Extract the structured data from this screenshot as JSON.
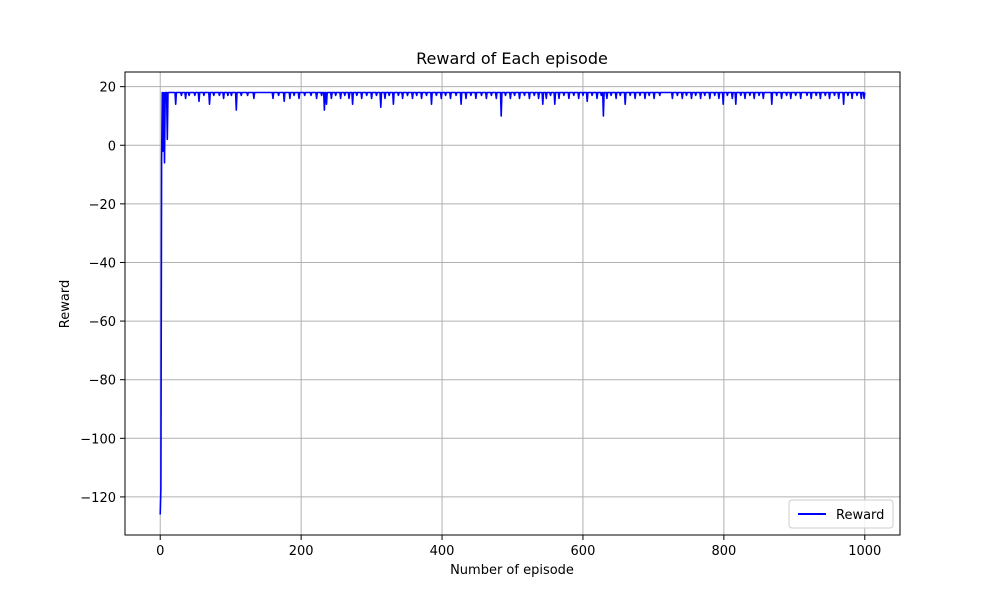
{
  "chart_data": {
    "type": "line",
    "title": "Reward of Each episode",
    "xlabel": "Number of episode",
    "ylabel": "Reward",
    "xlim": [
      -50,
      1050
    ],
    "ylim": [
      -133,
      25
    ],
    "xticks": [
      0,
      200,
      400,
      600,
      800,
      1000
    ],
    "xtick_labels": [
      "0",
      "200",
      "400",
      "600",
      "800",
      "1000"
    ],
    "yticks": [
      -120,
      -100,
      -80,
      -60,
      -40,
      -20,
      0,
      20
    ],
    "ytick_labels": [
      "−120",
      "−100",
      "−80",
      "−60",
      "−40",
      "−20",
      "0",
      "20"
    ],
    "grid": true,
    "legend": {
      "position": "lower-right",
      "entries": [
        "Reward"
      ]
    },
    "series": [
      {
        "name": "Reward",
        "color": "#0000ff",
        "baseline": 18,
        "early_points": [
          [
            0,
            -126
          ],
          [
            1,
            -117
          ],
          [
            2,
            -6
          ],
          [
            3,
            18
          ],
          [
            4,
            -2
          ],
          [
            5,
            18
          ],
          [
            6,
            -6
          ],
          [
            7,
            18
          ],
          [
            8,
            17
          ],
          [
            9,
            18
          ],
          [
            10,
            2
          ],
          [
            11,
            18
          ],
          [
            12,
            18
          ]
        ],
        "dips": [
          [
            22,
            14
          ],
          [
            30,
            17
          ],
          [
            36,
            16
          ],
          [
            41,
            17
          ],
          [
            49,
            17
          ],
          [
            55,
            15
          ],
          [
            62,
            17
          ],
          [
            70,
            14
          ],
          [
            76,
            17
          ],
          [
            84,
            17
          ],
          [
            90,
            16
          ],
          [
            96,
            17
          ],
          [
            101,
            17
          ],
          [
            108,
            12
          ],
          [
            115,
            17
          ],
          [
            124,
            17
          ],
          [
            133,
            16
          ],
          [
            160,
            16
          ],
          [
            168,
            17
          ],
          [
            176,
            15
          ],
          [
            184,
            16
          ],
          [
            190,
            17
          ],
          [
            197,
            16
          ],
          [
            205,
            17
          ],
          [
            214,
            17
          ],
          [
            222,
            16
          ],
          [
            229,
            17
          ],
          [
            233,
            12
          ],
          [
            236,
            14
          ],
          [
            243,
            16
          ],
          [
            249,
            17
          ],
          [
            256,
            16
          ],
          [
            262,
            17
          ],
          [
            268,
            16
          ],
          [
            273,
            14
          ],
          [
            279,
            17
          ],
          [
            286,
            16
          ],
          [
            293,
            17
          ],
          [
            300,
            16
          ],
          [
            307,
            17
          ],
          [
            313,
            13
          ],
          [
            319,
            16
          ],
          [
            325,
            17
          ],
          [
            331,
            14
          ],
          [
            338,
            17
          ],
          [
            344,
            16
          ],
          [
            351,
            17
          ],
          [
            358,
            16
          ],
          [
            364,
            17
          ],
          [
            371,
            16
          ],
          [
            378,
            17
          ],
          [
            385,
            14
          ],
          [
            392,
            17
          ],
          [
            399,
            16
          ],
          [
            405,
            17
          ],
          [
            412,
            16
          ],
          [
            420,
            17
          ],
          [
            427,
            14
          ],
          [
            434,
            16
          ],
          [
            441,
            17
          ],
          [
            448,
            16
          ],
          [
            456,
            17
          ],
          [
            463,
            16
          ],
          [
            470,
            17
          ],
          [
            477,
            16
          ],
          [
            484,
            10
          ],
          [
            490,
            17
          ],
          [
            497,
            16
          ],
          [
            503,
            17
          ],
          [
            510,
            16
          ],
          [
            517,
            17
          ],
          [
            524,
            16
          ],
          [
            531,
            17
          ],
          [
            537,
            16
          ],
          [
            543,
            14
          ],
          [
            548,
            16
          ],
          [
            554,
            17
          ],
          [
            560,
            14
          ],
          [
            566,
            16
          ],
          [
            573,
            17
          ],
          [
            580,
            16
          ],
          [
            587,
            17
          ],
          [
            594,
            16
          ],
          [
            600,
            17
          ],
          [
            606,
            15
          ],
          [
            613,
            17
          ],
          [
            620,
            16
          ],
          [
            626,
            17
          ],
          [
            629,
            10
          ],
          [
            634,
            16
          ],
          [
            640,
            17
          ],
          [
            647,
            16
          ],
          [
            653,
            17
          ],
          [
            660,
            14
          ],
          [
            667,
            17
          ],
          [
            674,
            16
          ],
          [
            681,
            17
          ],
          [
            688,
            16
          ],
          [
            694,
            17
          ],
          [
            701,
            16
          ],
          [
            709,
            17
          ],
          [
            727,
            16
          ],
          [
            734,
            17
          ],
          [
            741,
            16
          ],
          [
            747,
            17
          ],
          [
            754,
            16
          ],
          [
            760,
            17
          ],
          [
            767,
            16
          ],
          [
            773,
            17
          ],
          [
            780,
            16
          ],
          [
            787,
            17
          ],
          [
            793,
            16
          ],
          [
            799,
            14
          ],
          [
            805,
            17
          ],
          [
            812,
            16
          ],
          [
            817,
            14
          ],
          [
            824,
            17
          ],
          [
            830,
            16
          ],
          [
            837,
            17
          ],
          [
            843,
            16
          ],
          [
            850,
            17
          ],
          [
            856,
            16
          ],
          [
            868,
            14
          ],
          [
            875,
            17
          ],
          [
            882,
            16
          ],
          [
            889,
            17
          ],
          [
            895,
            16
          ],
          [
            902,
            17
          ],
          [
            909,
            16
          ],
          [
            918,
            17
          ],
          [
            924,
            16
          ],
          [
            931,
            17
          ],
          [
            937,
            16
          ],
          [
            944,
            17
          ],
          [
            950,
            16
          ],
          [
            957,
            17
          ],
          [
            963,
            16
          ],
          [
            970,
            14
          ],
          [
            976,
            17
          ],
          [
            982,
            16
          ],
          [
            989,
            17
          ],
          [
            995,
            16
          ],
          [
            999,
            16
          ]
        ],
        "x_max": 1000
      }
    ]
  }
}
